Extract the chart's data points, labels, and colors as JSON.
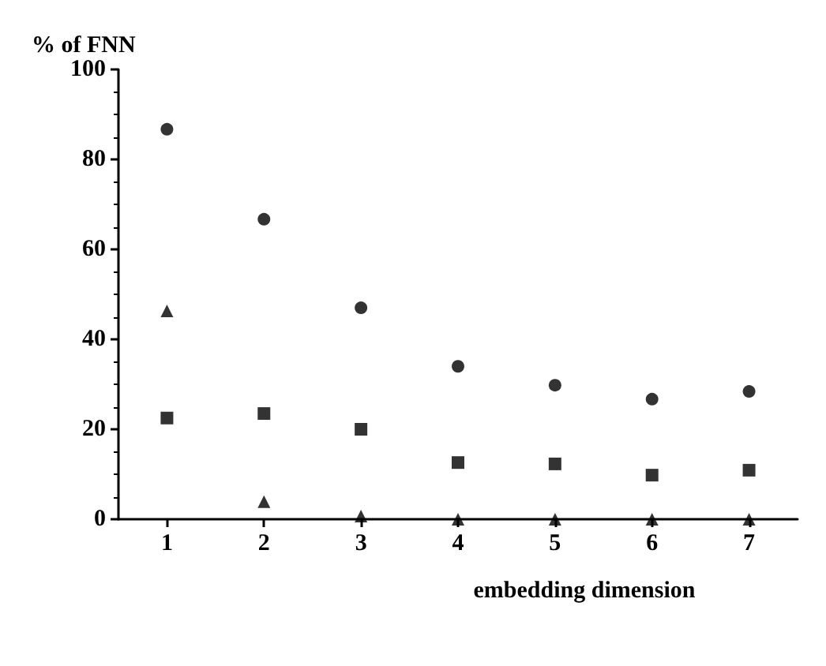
{
  "chart_data": {
    "type": "scatter",
    "ylabel": "% of FNN",
    "xlabel": "embedding dimension",
    "x": [
      1,
      2,
      3,
      4,
      5,
      6,
      7
    ],
    "xlim": [
      0.5,
      7.5
    ],
    "xticks": [
      1,
      2,
      3,
      4,
      5,
      6,
      7
    ],
    "ylim": [
      0,
      100
    ],
    "yticks": [
      0,
      20,
      40,
      60,
      80,
      100
    ],
    "grid": false,
    "series": [
      {
        "color": "#000000",
        "marker": "circle",
        "values": [
          86.7,
          66.7,
          47,
          34,
          29.8,
          26.7,
          28.4
        ]
      },
      {
        "color": "#000000",
        "marker": "square",
        "values": [
          22.5,
          23.5,
          20,
          12.6,
          12.3,
          9.8,
          10.9
        ]
      },
      {
        "color": "#000000",
        "marker": "triangle",
        "values": [
          46.3,
          3.9,
          0.7,
          0,
          0,
          0,
          0
        ]
      }
    ]
  }
}
